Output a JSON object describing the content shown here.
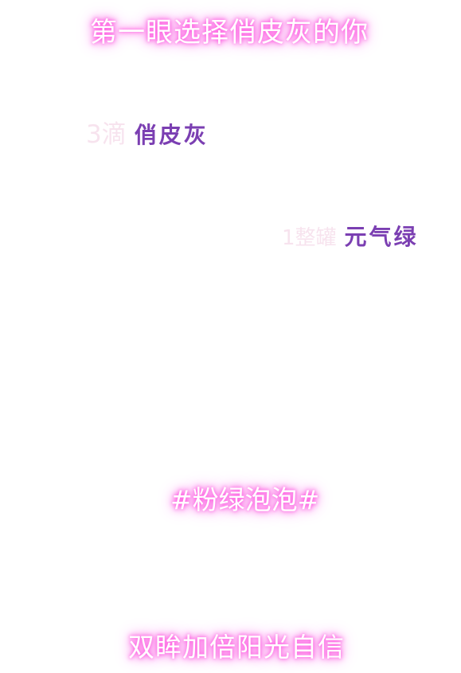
{
  "header": {
    "title": "第一眼选择俏皮灰的你"
  },
  "recipe": [
    {
      "quantity": "3滴",
      "name": "俏皮灰"
    },
    {
      "quantity": "1整罐",
      "name": "元气绿"
    }
  ],
  "hashtag": "#粉绿泡泡#",
  "tagline": "双眸加倍阳光自信",
  "colors": {
    "glow": "#ff5ce1",
    "quantity_text": "#f7e3ee",
    "name_text": "#7b3fb2",
    "background": "#ffffff"
  }
}
